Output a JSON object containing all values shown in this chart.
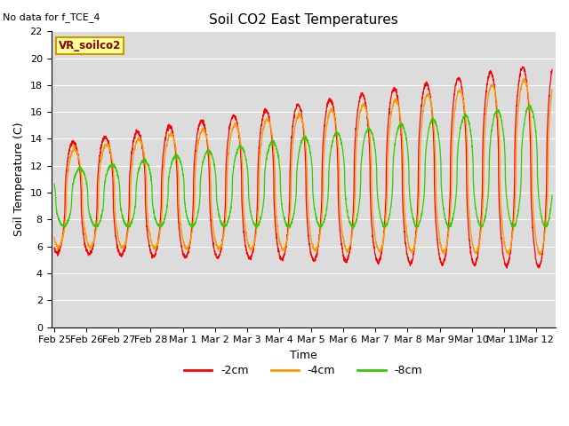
{
  "title": "Soil CO2 East Temperatures",
  "no_data_text": "No data for f_TCE_4",
  "legend_box_text": "VR_soilco2",
  "ylabel": "Soil Temperature (C)",
  "xlabel": "Time",
  "ylim": [
    0,
    22
  ],
  "yticks": [
    0,
    2,
    4,
    6,
    8,
    10,
    12,
    14,
    16,
    18,
    20,
    22
  ],
  "colors": {
    "2cm": "#ff0000",
    "4cm": "#ff9900",
    "8cm": "#33cc00"
  },
  "legend_labels": [
    "-2cm",
    "-4cm",
    "-8cm"
  ],
  "plot_bg": "#dcdcdc",
  "fig_bg": "#ffffff",
  "xtick_labels": [
    "Feb 25",
    "Feb 26",
    "Feb 27",
    "Feb 28",
    "Mar 1",
    "Mar 2",
    "Mar 3",
    "Mar 4",
    "Mar 5",
    "Mar 6",
    "Mar 7",
    "Mar 8",
    "Mar 9",
    "Mar 10",
    "Mar 11",
    "Mar 12"
  ]
}
